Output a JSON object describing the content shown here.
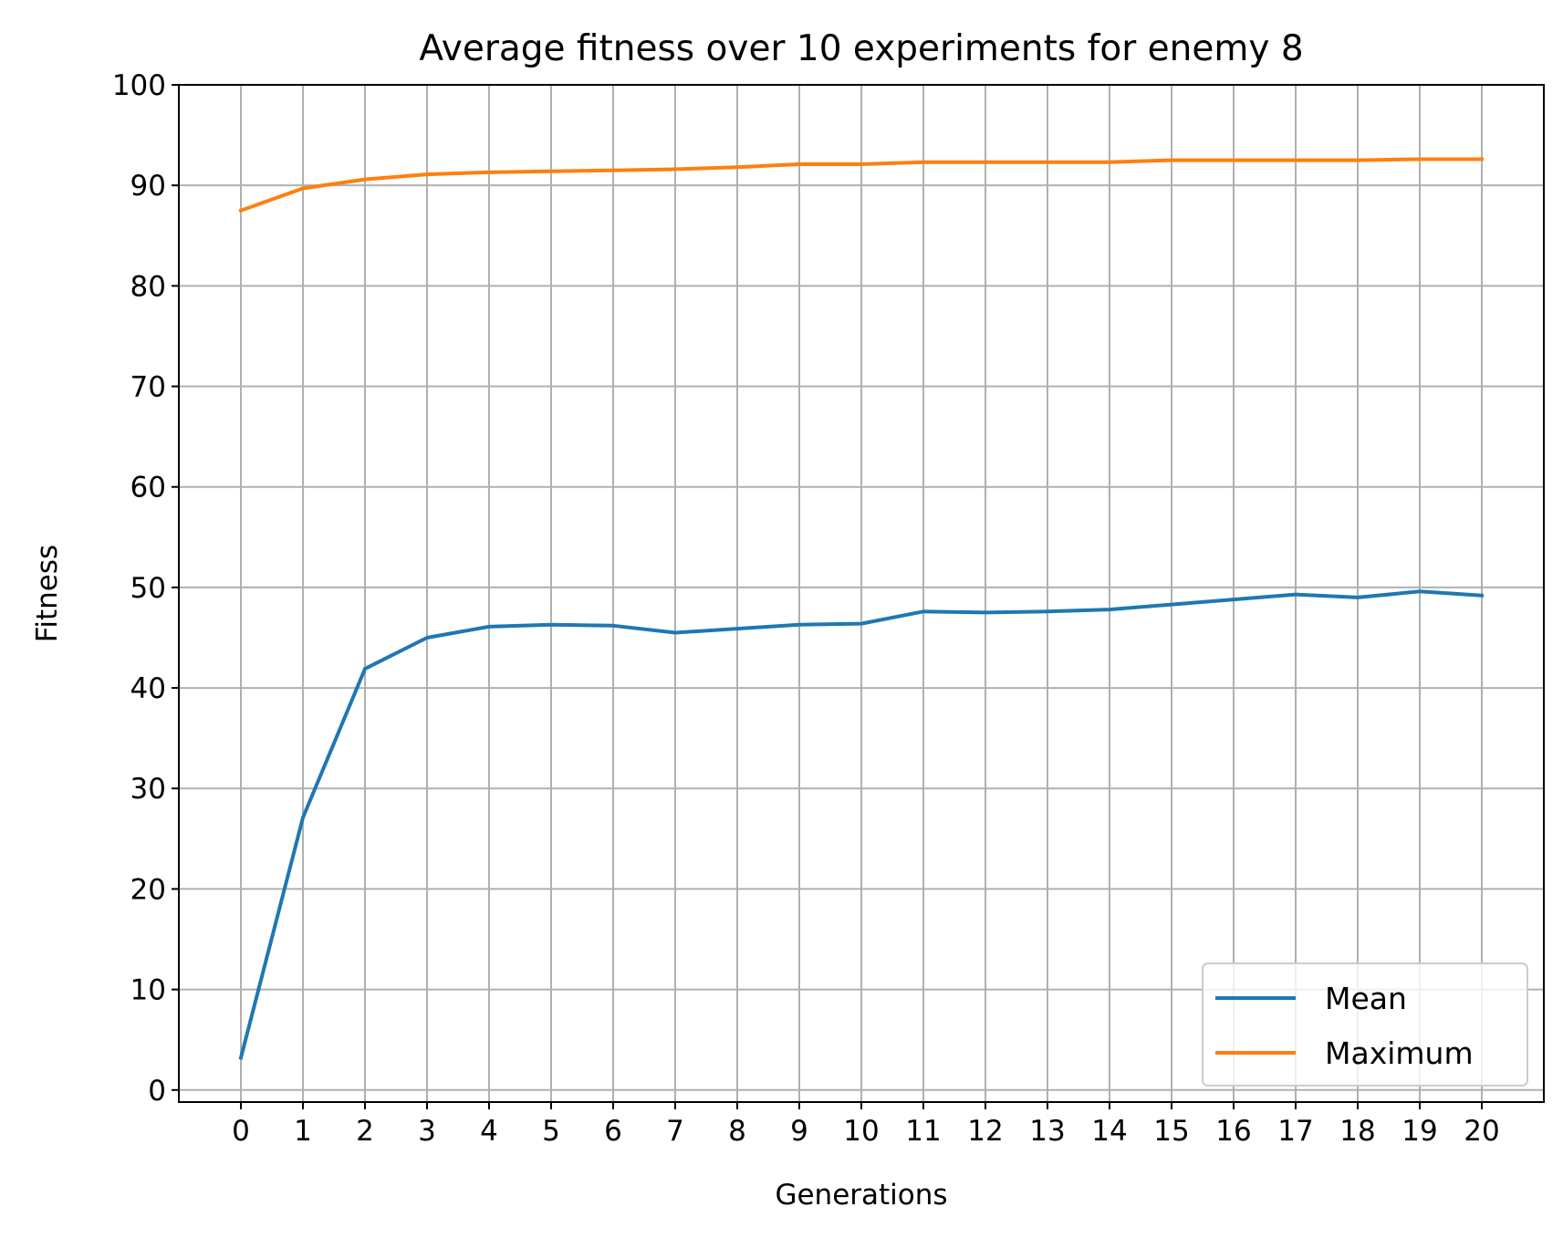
{
  "chart_data": {
    "type": "line",
    "title": "Average fitness over 10 experiments for enemy 8",
    "xlabel": "Generations",
    "ylabel": "Fitness",
    "x": [
      0,
      1,
      2,
      3,
      4,
      5,
      6,
      7,
      8,
      9,
      10,
      11,
      12,
      13,
      14,
      15,
      16,
      17,
      18,
      19,
      20
    ],
    "xticks": [
      "0",
      "1",
      "2",
      "3",
      "4",
      "5",
      "6",
      "7",
      "8",
      "9",
      "10",
      "11",
      "12",
      "13",
      "14",
      "15",
      "16",
      "17",
      "18",
      "19",
      "20"
    ],
    "yticks": [
      "0",
      "10",
      "20",
      "30",
      "40",
      "50",
      "60",
      "70",
      "80",
      "90",
      "100"
    ],
    "xlim": [
      -1,
      21
    ],
    "ylim": [
      -1.2,
      100
    ],
    "grid": true,
    "legend_position": "lower-right",
    "series": [
      {
        "name": "Mean",
        "color": "#1f77b4",
        "values": [
          3.2,
          27.1,
          41.9,
          45.0,
          46.1,
          46.3,
          46.2,
          45.5,
          45.9,
          46.3,
          46.4,
          47.6,
          47.5,
          47.6,
          47.8,
          48.3,
          48.8,
          49.3,
          49.0,
          49.6,
          49.2
        ]
      },
      {
        "name": "Maximum",
        "color": "#ff7f0e",
        "values": [
          87.5,
          89.7,
          90.6,
          91.1,
          91.3,
          91.4,
          91.5,
          91.6,
          91.8,
          92.1,
          92.1,
          92.3,
          92.3,
          92.3,
          92.3,
          92.5,
          92.5,
          92.5,
          92.5,
          92.6,
          92.6
        ]
      }
    ]
  }
}
